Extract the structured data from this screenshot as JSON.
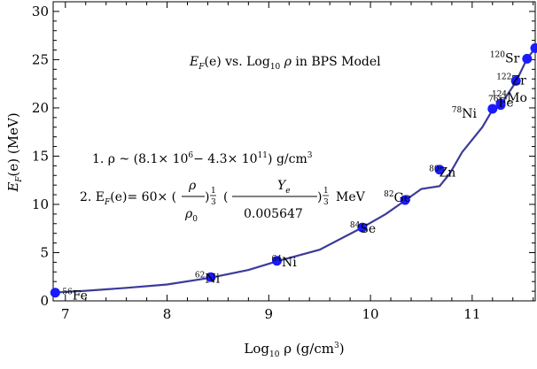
{
  "chart_data": {
    "type": "line",
    "title": "",
    "xlabel": "Log10 ρ (g/cm3)",
    "ylabel": "EF(e) (MeV)",
    "xlim": [
      6.88,
      11.62
    ],
    "ylim": [
      0,
      31
    ],
    "x_ticks": [
      7,
      8,
      9,
      10,
      11
    ],
    "y_ticks": [
      0,
      5,
      10,
      15,
      20,
      25,
      30
    ],
    "grid": false,
    "legend": "none",
    "colors": {
      "curve": "#3b3b9a",
      "points": "#1a1aff",
      "frame": "#000000"
    },
    "curve": {
      "x": [
        6.88,
        7.2,
        7.6,
        8.0,
        8.43,
        8.8,
        9.08,
        9.5,
        9.92,
        10.15,
        10.34,
        10.5,
        10.68,
        10.78,
        10.9,
        11.1,
        11.2,
        11.28,
        11.43,
        11.54,
        11.62
      ],
      "y": [
        0.85,
        1.05,
        1.35,
        1.7,
        2.4,
        3.2,
        4.1,
        5.3,
        7.6,
        9.0,
        10.4,
        11.6,
        11.9,
        13.2,
        15.4,
        18.0,
        19.8,
        20.3,
        22.7,
        25.1,
        26.2
      ]
    },
    "series": [
      {
        "points": [
          {
            "x": 6.9,
            "y": 0.85,
            "label": "Fe",
            "mass": "56"
          },
          {
            "x": 8.43,
            "y": 2.45,
            "label": "Ni",
            "mass": "62"
          },
          {
            "x": 9.08,
            "y": 4.15,
            "label": "Ni",
            "mass": "64"
          },
          {
            "x": 9.92,
            "y": 7.6,
            "label": "Se",
            "mass": "84"
          },
          {
            "x": 10.34,
            "y": 10.45,
            "label": "Ge",
            "mass": "82"
          },
          {
            "x": 10.68,
            "y": 13.6,
            "label": "Zn",
            "mass": "80"
          },
          {
            "x": 11.2,
            "y": 19.9,
            "label": "Ni",
            "mass": "78"
          },
          {
            "x": 11.28,
            "y": 20.3,
            "label": "Fe",
            "mass": "76"
          },
          {
            "x": 11.28,
            "y": 20.45,
            "label": "Mo",
            "mass": "124"
          },
          {
            "x": 11.43,
            "y": 22.8,
            "label": "Zr",
            "mass": "122"
          },
          {
            "x": 11.54,
            "y": 25.1,
            "label": "Sr",
            "mass": "120"
          },
          {
            "x": 11.62,
            "y": 26.2,
            "label": "",
            "mass": ""
          }
        ]
      }
    ],
    "annotations": {
      "heading": {
        "e": "E",
        "f": "F",
        "rest1": "(e) vs. Log",
        "ten": "10",
        "rho": " ρ",
        "rest2": " in BPS Model"
      },
      "line1": {
        "prefix": "1. ρ ~ (8.1× 10",
        "exp1": "6",
        "mid": "− 4.3× 10",
        "exp2": "11",
        "suffix": ") g/cm",
        "exp3": "3"
      },
      "line2": {
        "prefix": "2. E",
        "sub": "F",
        "mid": "(e)= 60× (",
        "rho": "ρ",
        "rho0": "ρ",
        "rho0sub": "0",
        "close": ")",
        "third": "1",
        "three": "3",
        "open2": "(",
        "ye": "Y",
        "yesub": "e",
        "den": "0.005647",
        "close2": ")",
        "unit": "MeV"
      }
    }
  }
}
